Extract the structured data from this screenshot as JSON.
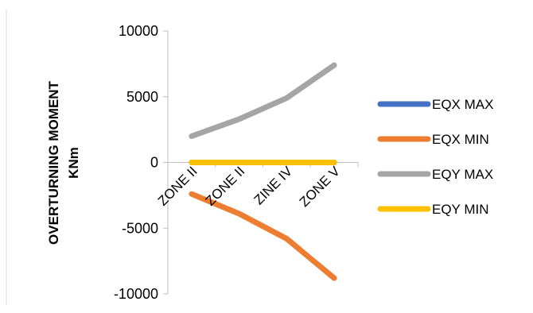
{
  "chart_data": {
    "type": "line",
    "title": "",
    "xlabel": "",
    "ylabel": "OVERTURNING MOMENT",
    "ylabel_unit": "KNm",
    "ylim": [
      -10000,
      10000
    ],
    "yticks": [
      10000,
      5000,
      0,
      -5000,
      -10000
    ],
    "categories": [
      "ZONE II",
      "ZONE II",
      "ZINE IV",
      "ZONE V"
    ],
    "grid": false,
    "legend_position": "right",
    "series": [
      {
        "name": "EQX MAX",
        "color": "#4472C4",
        "values": [
          0,
          0,
          0,
          0
        ]
      },
      {
        "name": "EQX MIN",
        "color": "#ED7D31",
        "values": [
          -2400,
          -3900,
          -5800,
          -8800
        ]
      },
      {
        "name": "EQY MAX",
        "color": "#A5A5A5",
        "values": [
          2000,
          3300,
          4900,
          7400
        ]
      },
      {
        "name": "EQY MIN",
        "color": "#FFC000",
        "values": [
          0,
          0,
          0,
          0
        ]
      }
    ]
  }
}
